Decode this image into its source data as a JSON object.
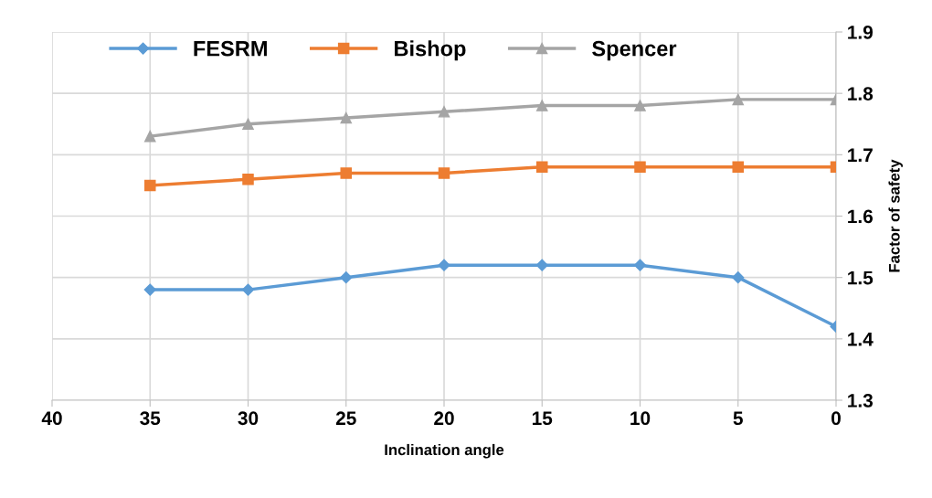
{
  "chart_data": {
    "type": "line",
    "xlabel": "Inclination angle",
    "ylabel": "Factor of safety",
    "x": [
      35,
      30,
      25,
      20,
      15,
      10,
      5,
      0
    ],
    "series": [
      {
        "name": "FESRM",
        "color": "#5b9bd5",
        "marker": "diamond",
        "values": [
          1.48,
          1.48,
          1.5,
          1.52,
          1.52,
          1.52,
          1.5,
          1.42
        ]
      },
      {
        "name": "Bishop",
        "color": "#ed7d31",
        "marker": "square",
        "values": [
          1.65,
          1.66,
          1.67,
          1.67,
          1.68,
          1.68,
          1.68,
          1.68
        ]
      },
      {
        "name": "Spencer",
        "color": "#a5a5a5",
        "marker": "triangle",
        "values": [
          1.73,
          1.75,
          1.76,
          1.77,
          1.78,
          1.78,
          1.79,
          1.79
        ]
      }
    ],
    "xlim": [
      40,
      0
    ],
    "xticks": [
      40,
      35,
      30,
      25,
      20,
      15,
      10,
      5,
      0
    ],
    "ylim": [
      1.3,
      1.9
    ],
    "yticks": [
      1.3,
      1.4,
      1.5,
      1.6,
      1.7,
      1.8,
      1.9
    ],
    "grid": true,
    "legend": "top left",
    "line_style": "solid"
  }
}
